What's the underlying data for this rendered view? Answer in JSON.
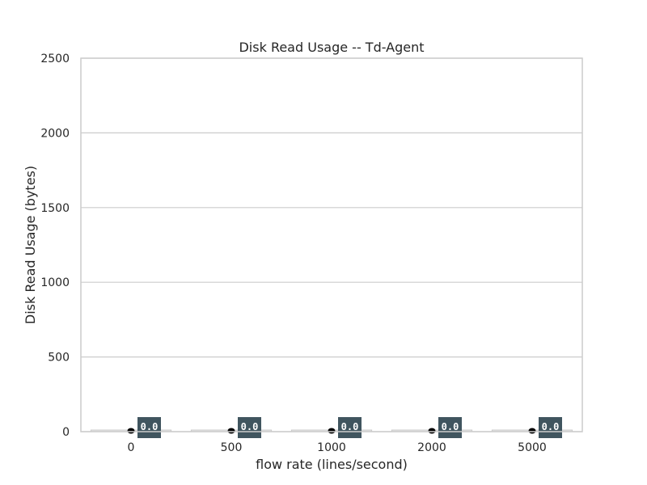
{
  "chart_data": {
    "type": "bar",
    "title": "Disk Read Usage -- Td-Agent",
    "xlabel": "flow rate (lines/second)",
    "ylabel": "Disk Read Usage (bytes)",
    "categories": [
      "0",
      "500",
      "1000",
      "2000",
      "5000"
    ],
    "values": [
      0.0,
      0.0,
      0.0,
      0.0,
      0.0
    ],
    "data_labels": [
      "0.0",
      "0.0",
      "0.0",
      "0.0",
      "0.0"
    ],
    "ylim": [
      0,
      2500
    ],
    "yticks": [
      "0",
      "500",
      "1000",
      "1500",
      "2000",
      "2500"
    ],
    "grid": "horizontal",
    "colors": {
      "bar": "#e8e8e8",
      "label_bg": "#40555f",
      "label_text": "#ffffff",
      "grid": "#cccccc"
    }
  }
}
